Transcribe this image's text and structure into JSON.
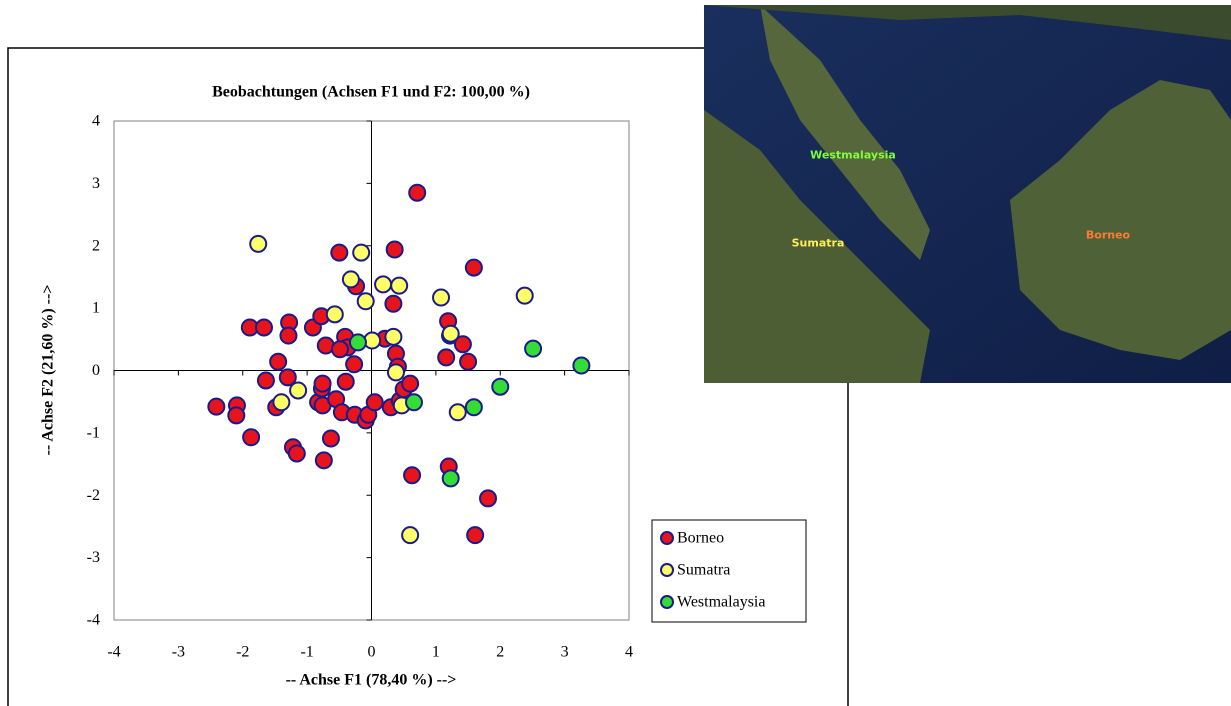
{
  "chart_data": {
    "type": "scatter",
    "title": "Beobachtungen (Achsen F1 und F2: 100,00 %)",
    "x_label": "-- Achse F1 (78,40 %) -->",
    "y_label": "-- Achse F2 (21,60 %) -->",
    "xlim": [
      -4,
      4
    ],
    "ylim": [
      -4,
      4
    ],
    "xticks": [
      -4,
      -3,
      -2,
      -1,
      0,
      1,
      2,
      3,
      4
    ],
    "yticks": [
      -4,
      -3,
      -2,
      -1,
      0,
      1,
      2,
      3,
      4
    ],
    "series": [
      {
        "name": "Borneo",
        "color": "#e8141c",
        "x": [
          0.71,
          -0.5,
          0.36,
          1.59,
          -0.24,
          0.34,
          -1.89,
          -1.67,
          -1.28,
          -1.29,
          -0.91,
          -0.78,
          -0.41,
          -0.71,
          -0.37,
          -0.49,
          -0.27,
          0.21,
          0.38,
          0.41,
          1.19,
          1.22,
          1.42,
          1.5,
          1.16,
          -1.45,
          -1.64,
          -1.3,
          -1.48,
          -2.41,
          -2.09,
          -2.1,
          -1.87,
          -1.22,
          -1.16,
          -0.83,
          -0.76,
          -0.77,
          -0.76,
          -0.4,
          -0.55,
          -0.46,
          -0.74,
          -0.63,
          -0.26,
          -0.09,
          -0.05,
          0.05,
          0.3,
          0.44,
          0.5,
          0.6,
          0.63,
          1.2,
          1.81,
          1.61
        ],
        "values": [
          2.85,
          1.89,
          1.94,
          1.65,
          1.35,
          1.07,
          0.69,
          0.69,
          0.77,
          0.56,
          0.69,
          0.87,
          0.54,
          0.4,
          0.37,
          0.34,
          0.1,
          0.51,
          0.27,
          0.06,
          0.79,
          0.56,
          0.42,
          0.14,
          0.21,
          0.14,
          -0.16,
          -0.11,
          -0.59,
          -0.58,
          -0.56,
          -0.72,
          -1.07,
          -1.23,
          -1.33,
          -0.51,
          -0.56,
          -0.29,
          -0.21,
          -0.18,
          -0.46,
          -0.67,
          -1.44,
          -1.09,
          -0.71,
          -0.8,
          -0.71,
          -0.51,
          -0.59,
          -0.48,
          -0.3,
          -0.21,
          -1.68,
          -1.54,
          -2.05,
          -2.64
        ]
      },
      {
        "name": "Sumatra",
        "color": "#ffff66",
        "x": [
          -1.76,
          -0.16,
          -0.32,
          0.18,
          0.43,
          -0.09,
          1.08,
          2.38,
          -0.57,
          0.01,
          0.34,
          1.23,
          0.38,
          -1.14,
          -1.4,
          0.47,
          1.34,
          0.6
        ],
        "values": [
          2.03,
          1.89,
          1.46,
          1.38,
          1.36,
          1.11,
          1.17,
          1.2,
          0.9,
          0.48,
          0.54,
          0.59,
          -0.03,
          -0.32,
          -0.51,
          -0.56,
          -0.67,
          -2.64
        ]
      },
      {
        "name": "Westmalaysia",
        "color": "#33dd33",
        "x": [
          -0.21,
          2.51,
          3.26,
          2.0,
          0.66,
          1.59,
          1.23
        ],
        "values": [
          0.45,
          0.35,
          0.08,
          -0.26,
          -0.51,
          -0.59,
          -1.73
        ]
      }
    ]
  },
  "map_labels": [
    "Westmalaysia",
    "Sumatra",
    "Borneo"
  ]
}
